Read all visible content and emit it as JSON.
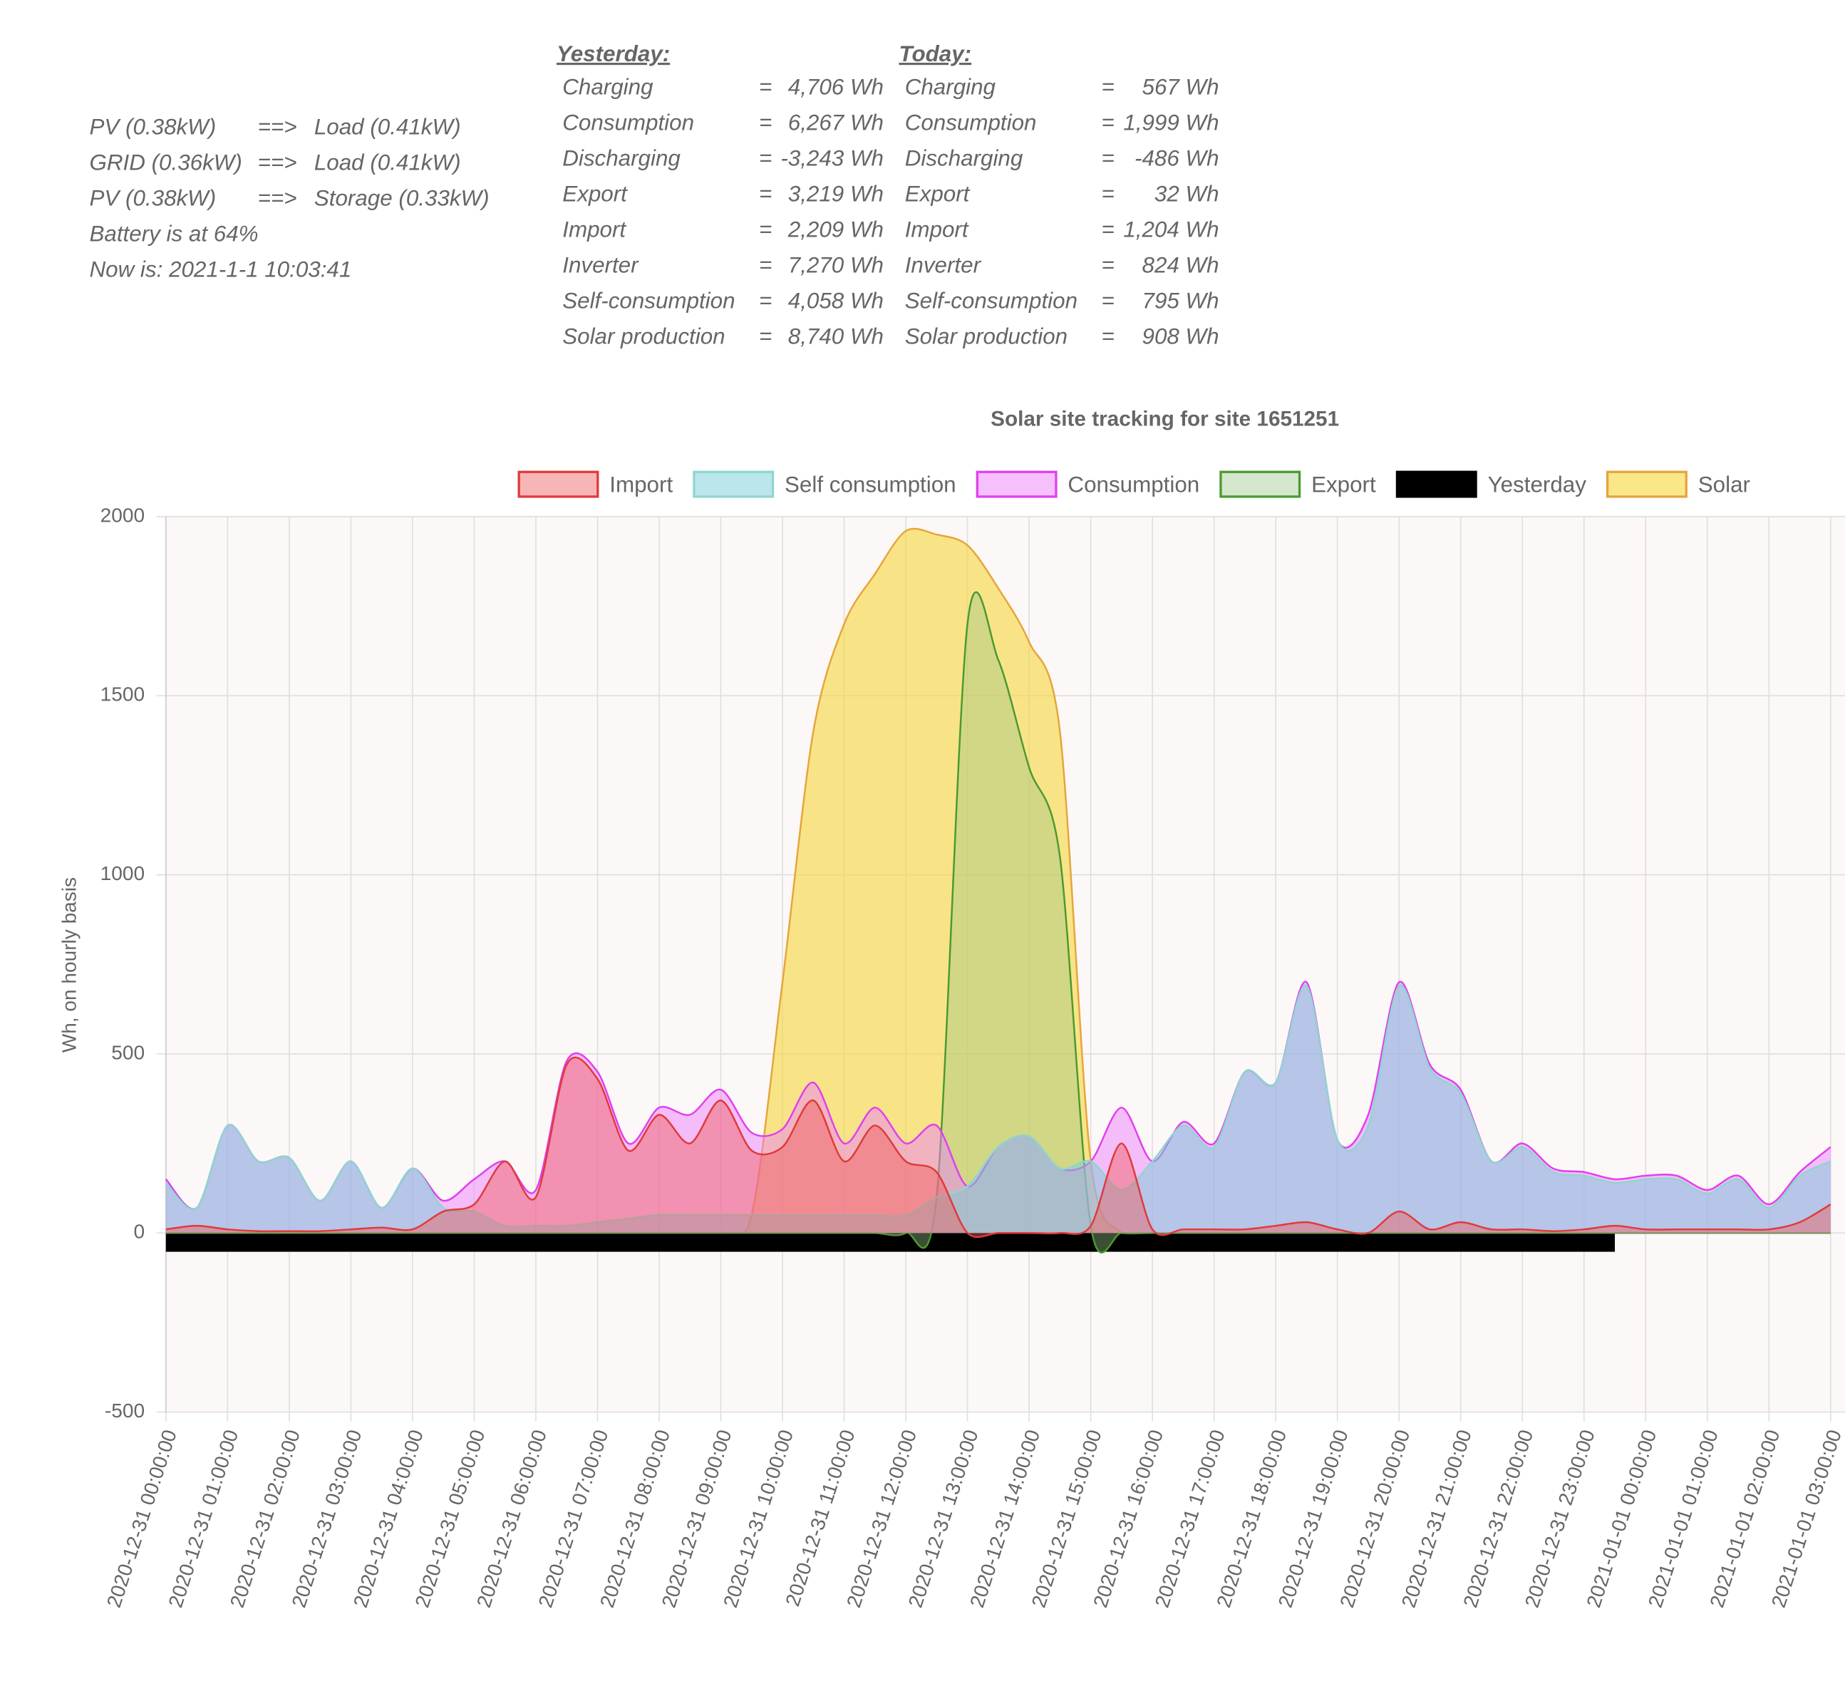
{
  "status": {
    "flows": [
      {
        "from": "PV (0.38kW)",
        "arrow": "==>",
        "to": "Load (0.41kW)"
      },
      {
        "from": "GRID (0.36kW)",
        "arrow": "==>",
        "to": "Load (0.41kW)"
      },
      {
        "from": "PV (0.38kW)",
        "arrow": "==>",
        "to": "Storage (0.33kW)"
      }
    ],
    "lines": [
      "Battery is at 64%",
      "Now is: 2021-1-1 10:03:41"
    ]
  },
  "summary": {
    "yesterday": {
      "title": "Yesterday:",
      "rows": [
        [
          "Charging",
          "=",
          "4,706 Wh"
        ],
        [
          "Consumption",
          "=",
          "6,267 Wh"
        ],
        [
          "Discharging",
          "=",
          "-3,243 Wh"
        ],
        [
          "Export",
          "=",
          "3,219 Wh"
        ],
        [
          "Import",
          "=",
          "2,209 Wh"
        ],
        [
          "Inverter",
          "=",
          "7,270 Wh"
        ],
        [
          "Self-consumption",
          "=",
          "4,058 Wh"
        ],
        [
          "Solar production",
          "=",
          "8,740 Wh"
        ]
      ]
    },
    "today": {
      "title": "Today:",
      "rows": [
        [
          "Charging",
          "=",
          "567 Wh"
        ],
        [
          "Consumption",
          "=",
          "1,999 Wh"
        ],
        [
          "Discharging",
          "=",
          "-486 Wh"
        ],
        [
          "Export",
          "=",
          "32 Wh"
        ],
        [
          "Import",
          "=",
          "1,204 Wh"
        ],
        [
          "Inverter",
          "=",
          "824 Wh"
        ],
        [
          "Self-consumption",
          "=",
          "795 Wh"
        ],
        [
          "Solar production",
          "=",
          "908 Wh"
        ]
      ]
    }
  },
  "chart_data": {
    "type": "area",
    "title": "Solar site tracking for site 1651251",
    "y_label": "Wh, on hourly basis",
    "categories": [
      "2020-12-31 00:00:00",
      null,
      "2020-12-31 01:00:00",
      null,
      "2020-12-31 02:00:00",
      null,
      "2020-12-31 03:00:00",
      null,
      "2020-12-31 04:00:00",
      null,
      "2020-12-31 05:00:00",
      null,
      "2020-12-31 06:00:00",
      null,
      "2020-12-31 07:00:00",
      null,
      "2020-12-31 08:00:00",
      null,
      "2020-12-31 09:00:00",
      null,
      "2020-12-31 10:00:00",
      null,
      "2020-12-31 11:00:00",
      null,
      "2020-12-31 12:00:00",
      null,
      "2020-12-31 13:00:00",
      null,
      "2020-12-31 14:00:00",
      null,
      "2020-12-31 15:00:00",
      null,
      "2020-12-31 16:00:00",
      null,
      "2020-12-31 17:00:00",
      null,
      "2020-12-31 18:00:00",
      null,
      "2020-12-31 19:00:00",
      null,
      "2020-12-31 20:00:00",
      null,
      "2020-12-31 21:00:00",
      null,
      "2020-12-31 22:00:00",
      null,
      "2020-12-31 23:00:00",
      null,
      "2021-01-01 00:00:00",
      null,
      "2021-01-01 01:00:00",
      null,
      "2021-01-01 02:00:00",
      null,
      "2021-01-01 03:00:00"
    ],
    "series": [
      {
        "name": "Import",
        "color": "#e03a3a",
        "fill_color": "rgba(240,90,90,0.45)",
        "values": [
          10,
          20,
          10,
          5,
          5,
          5,
          10,
          15,
          10,
          60,
          80,
          200,
          100,
          470,
          430,
          230,
          330,
          250,
          370,
          230,
          240,
          370,
          200,
          300,
          200,
          170,
          0,
          0,
          0,
          0,
          20,
          250,
          10,
          10,
          10,
          10,
          20,
          30,
          10,
          0,
          60,
          10,
          30,
          10,
          10,
          5,
          10,
          20,
          10,
          10,
          10,
          10,
          10,
          30,
          80
        ]
      },
      {
        "name": "Self consumption",
        "color": "#8fd6cf",
        "fill_color": "rgba(120,205,215,0.5)",
        "values": [
          140,
          70,
          300,
          200,
          210,
          90,
          200,
          70,
          180,
          70,
          60,
          20,
          20,
          20,
          30,
          40,
          50,
          50,
          50,
          50,
          50,
          50,
          50,
          50,
          50,
          100,
          130,
          240,
          270,
          180,
          200,
          120,
          200,
          300,
          240,
          450,
          420,
          690,
          260,
          300,
          690,
          460,
          390,
          200,
          240,
          170,
          160,
          140,
          150,
          150,
          110,
          150,
          70,
          160,
          200
        ]
      },
      {
        "name": "Consumption",
        "color": "#e040f0",
        "fill_color": "rgba(235,130,250,0.5)",
        "values": [
          150,
          70,
          300,
          200,
          210,
          90,
          200,
          70,
          180,
          90,
          150,
          200,
          120,
          480,
          450,
          250,
          350,
          330,
          400,
          280,
          290,
          420,
          250,
          350,
          250,
          300,
          130,
          240,
          270,
          180,
          200,
          350,
          200,
          310,
          250,
          450,
          420,
          700,
          260,
          330,
          700,
          470,
          400,
          200,
          250,
          180,
          170,
          150,
          160,
          160,
          120,
          160,
          80,
          170,
          240
        ]
      },
      {
        "name": "Export",
        "color": "#4a9a30",
        "fill_color": "rgba(150,195,130,0.4)",
        "values": [
          0,
          0,
          0,
          0,
          0,
          0,
          0,
          0,
          0,
          0,
          0,
          0,
          0,
          0,
          0,
          0,
          0,
          0,
          0,
          0,
          0,
          0,
          0,
          0,
          0,
          100,
          1700,
          1600,
          1300,
          1050,
          20,
          0,
          0,
          0,
          0,
          0,
          0,
          0,
          0,
          0,
          0,
          0,
          0,
          0,
          0,
          0,
          0,
          0,
          0,
          0,
          0,
          0,
          0,
          0,
          0
        ]
      },
      {
        "name": "Yesterday",
        "color": "#000000",
        "fill_color": "#000000",
        "values": [
          -50,
          -50,
          -50,
          -50,
          -50,
          -50,
          -50,
          -50,
          -50,
          -50,
          -50,
          -50,
          -50,
          -50,
          -50,
          -50,
          -50,
          -50,
          -50,
          -50,
          -50,
          -50,
          -50,
          -50,
          -50,
          -50,
          -50,
          -50,
          -50,
          -50,
          -50,
          -50,
          -50,
          -50,
          -50,
          -50,
          -50,
          -50,
          -50,
          -50,
          -50,
          -50,
          -50,
          -50,
          -50,
          -50,
          -50,
          -50,
          null,
          null,
          null,
          null,
          null,
          null,
          null
        ]
      },
      {
        "name": "Solar",
        "color": "#e6a53a",
        "fill_color": "rgba(245,215,60,0.6)",
        "values": [
          0,
          0,
          0,
          0,
          0,
          0,
          0,
          0,
          0,
          0,
          0,
          0,
          0,
          0,
          0,
          0,
          0,
          0,
          0,
          50,
          700,
          1400,
          1700,
          1840,
          1960,
          1950,
          1920,
          1800,
          1650,
          1400,
          200,
          0,
          0,
          0,
          0,
          0,
          0,
          0,
          0,
          0,
          0,
          0,
          0,
          0,
          0,
          0,
          0,
          0,
          0,
          0,
          0,
          0,
          0,
          0,
          0
        ]
      }
    ],
    "ylim": [
      -500,
      2000
    ],
    "yticks": [
      -500,
      0,
      500,
      1000,
      1500,
      2000
    ],
    "grid": true,
    "legend": "top"
  }
}
